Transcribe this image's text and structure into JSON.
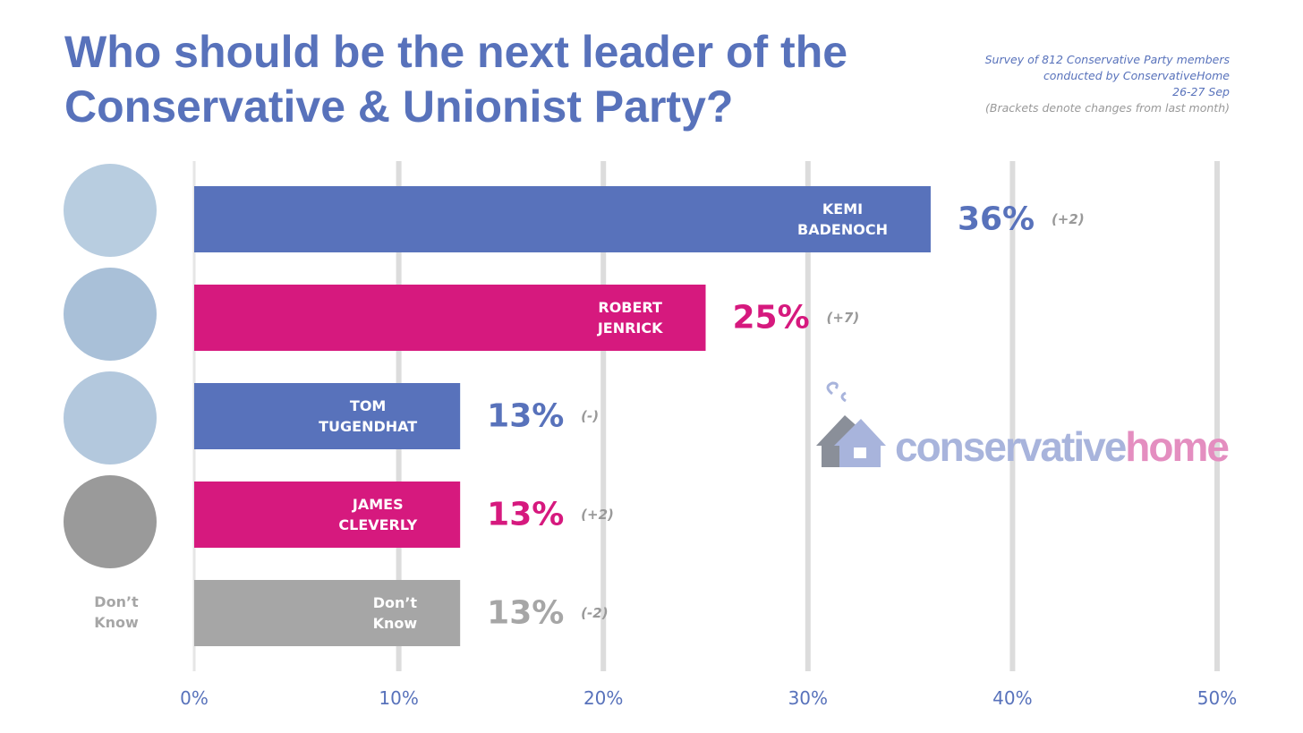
{
  "chart_data": {
    "type": "bar",
    "orientation": "horizontal",
    "title": "Who should be the next leader of the Conservative & Unionist Party?",
    "notes": [
      "Survey of 812 Conservative Party members",
      "conducted by ConservativeHome",
      "26-27 Sep",
      "(Brackets denote changes from last month)"
    ],
    "logo": [
      "conservative",
      "home"
    ],
    "categories": [
      "KEMI BADENOCH",
      "ROBERT JENRICK",
      "TOM TUGENDHAT",
      "JAMES CLEVERLY",
      "Don’t Know"
    ],
    "values": [
      36,
      25,
      13,
      13,
      13
    ],
    "value_labels": [
      "36%",
      "25%",
      "13%",
      "13%",
      "13%"
    ],
    "changes": [
      "(+2)",
      "(+7)",
      "(-)",
      "(+2)",
      "(-2)"
    ],
    "colors": [
      "#5872bb",
      "#d6197e",
      "#5872bb",
      "#d6197e",
      "#a6a6a6"
    ],
    "xlim": [
      0,
      50
    ],
    "xticks": [
      {
        "value": 0,
        "label": "0%"
      },
      {
        "value": 10,
        "label": "10%"
      },
      {
        "value": 20,
        "label": "20%"
      },
      {
        "value": 30,
        "label": "30%"
      },
      {
        "value": 40,
        "label": "40%"
      },
      {
        "value": 50,
        "label": "50%"
      }
    ],
    "grid": true
  }
}
